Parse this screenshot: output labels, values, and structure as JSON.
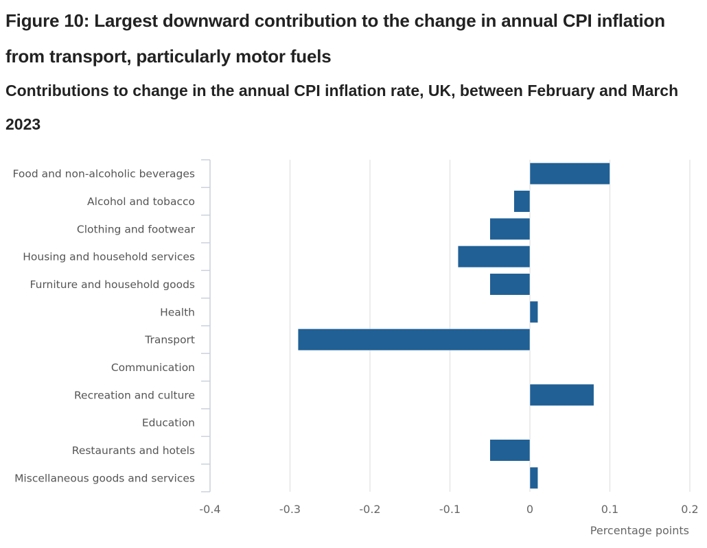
{
  "figure": {
    "title": "Figure 10: Largest downward contribution to the change in annual CPI inflation from transport, particularly motor fuels",
    "subtitle": "Contributions to change in the annual CPI inflation rate, UK, between February and March 2023"
  },
  "chart_data": {
    "type": "bar",
    "orientation": "horizontal",
    "title": "Contributions to change in the annual CPI inflation rate, UK, between February and March 2023",
    "xlabel": "Percentage points",
    "ylabel": "",
    "categories": [
      "Food and non-alcoholic beverages",
      "Alcohol and tobacco",
      "Clothing and footwear",
      "Housing and household services",
      "Furniture and household goods",
      "Health",
      "Transport",
      "Communication",
      "Recreation and culture",
      "Education",
      "Restaurants and hotels",
      "Miscellaneous goods and services"
    ],
    "values": [
      0.1,
      -0.02,
      -0.05,
      -0.09,
      -0.05,
      0.01,
      -0.29,
      0.0,
      0.08,
      0.0,
      -0.05,
      0.01
    ],
    "xlim": [
      -0.4,
      0.2
    ],
    "xticks": [
      -0.4,
      -0.3,
      -0.2,
      -0.1,
      0,
      0.1,
      0.2
    ],
    "xtick_labels": [
      "-0.4",
      "-0.3",
      "-0.2",
      "-0.1",
      "0",
      "0.1",
      "0.2"
    ],
    "grid": "vertical",
    "legend": "none",
    "colors": {
      "bar": "#206095",
      "grid": "#e0e0e0",
      "axis": "#c9d1dc",
      "text": "#555555"
    }
  }
}
